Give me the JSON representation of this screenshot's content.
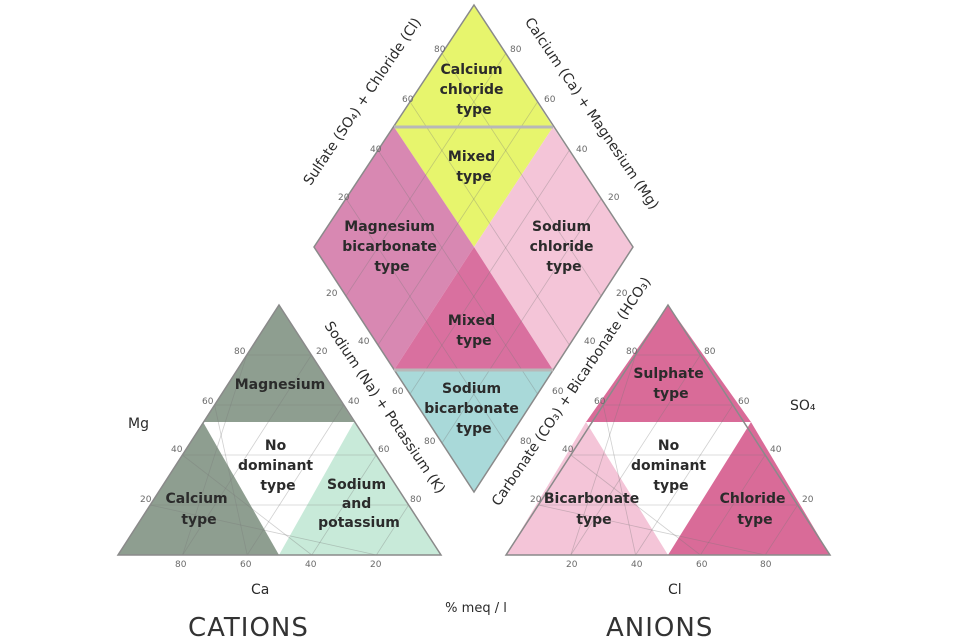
{
  "colors": {
    "lime": "#e7f56d",
    "mauve": "#d888b2",
    "rose": "#d9709f",
    "pale_pink": "#f4c5d8",
    "cyan": "#a9d9d9",
    "gray_green": "#8e9e90",
    "mint": "#c8ead9",
    "pink_strong": "#d96b98"
  },
  "diamond": {
    "calcium_chloride": [
      "Calcium",
      "chloride",
      "type"
    ],
    "mixed_top": [
      "Mixed",
      "type"
    ],
    "magnesium_bicarbonate": [
      "Magnesium",
      "bicarbonate",
      "type"
    ],
    "sodium_chloride": [
      "Sodium",
      "chloride",
      "type"
    ],
    "mixed_bottom": [
      "Mixed",
      "type"
    ],
    "sodium_bicarbonate": [
      "Sodium",
      "bicarbonate",
      "type"
    ],
    "axis_sulfate_chloride": "Sulfate (SO₄) + Chloride (Cl)",
    "axis_calcium_magnesium": "Calcium (Ca) + Magnesium (Mg)",
    "axis_sodium_potassium": "Sodium (Na) + Potassium (K)",
    "axis_carbonate_bicarbonate": "Carbonate (CO₃) + Bicarbonate (HCO₃)"
  },
  "cations": {
    "magnesium": "Magnesium",
    "no_dominant": [
      "No",
      "dominant",
      "type"
    ],
    "calcium": [
      "Calcium",
      "type"
    ],
    "sodium_potassium": [
      "Sodium",
      "and",
      "potassium"
    ],
    "corner_mg": "Mg",
    "corner_ca": "Ca",
    "title": "CATIONS"
  },
  "anions": {
    "sulphate": [
      "Sulphate",
      "type"
    ],
    "no_dominant": [
      "No",
      "dominant",
      "type"
    ],
    "bicarbonate": [
      "Bicarbonate",
      "type"
    ],
    "chloride": [
      "Chloride",
      "type"
    ],
    "corner_so4": "SO₄",
    "corner_cl": "Cl",
    "title": "ANIONS"
  },
  "unit": "% meq / l",
  "ticks": {
    "diamond_upper_left": [
      "80",
      "60",
      "40",
      "20"
    ],
    "diamond_upper_right": [
      "80",
      "60",
      "40",
      "20"
    ],
    "diamond_lower_left": [
      "20",
      "40",
      "60",
      "80"
    ],
    "diamond_lower_right": [
      "20",
      "40",
      "60",
      "80"
    ],
    "cation_left": [
      "20",
      "40",
      "60",
      "80"
    ],
    "cation_right": [
      "20",
      "40",
      "60",
      "80"
    ],
    "cation_bottom": [
      "80",
      "60",
      "40",
      "20"
    ],
    "anion_left": [
      "20",
      "40",
      "60",
      "80"
    ],
    "anion_right": [
      "80",
      "60",
      "40",
      "20"
    ],
    "anion_bottom": [
      "20",
      "40",
      "60",
      "80"
    ]
  }
}
